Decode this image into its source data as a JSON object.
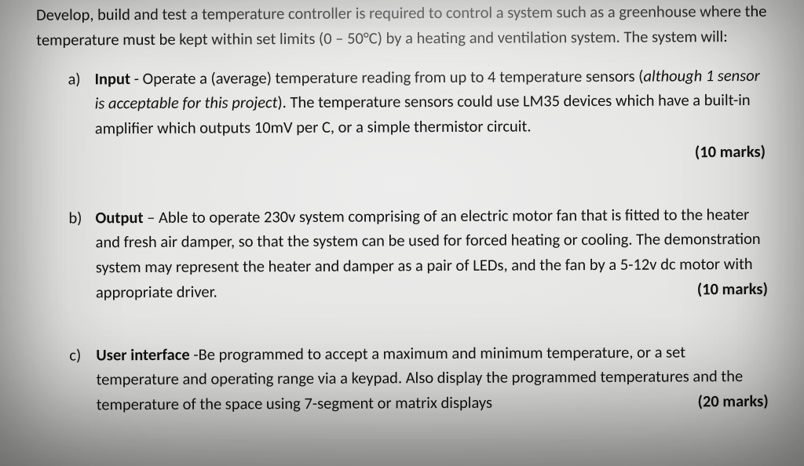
{
  "intro_html": "Develop, build and test a temperature controller is required to control a system such as a greenhouse where the temperature must be kept within set limits (0 – 50°C) by a heating and ventilation system. The system will:",
  "items": [
    {
      "marker": "a)",
      "body_html": "<b>Input</b> - Operate a (average) temperature reading from up to 4 temperature sensors (<em>although 1 sensor is acceptable for this project</em>). The temperature sensors could use LM35 devices which have a built-in amplifier which outputs 10mV per C, or a simple thermistor circuit.",
      "marks_text": "(10 marks)",
      "marks_newline": true
    },
    {
      "marker": "b)",
      "body_html": "<b>Output</b> – Able to operate 230v system comprising of an electric motor fan that is fitted to the heater and fresh air damper, so that the system can be used for forced heating or cooling. The demonstration system may represent the heater and damper as a pair of LEDs, and the fan by a 5-12v dc motor with appropriate driver.",
      "marks_text": "(10 marks)",
      "marks_newline": false
    },
    {
      "marker": "c)",
      "body_html": "<b>User interface</b> -Be programmed to accept a maximum and minimum temperature, or a set temperature and operating range via a keypad. Also display the programmed temperatures and the temperature of the space using 7-segment or matrix displays",
      "marks_text": "(20 marks)",
      "marks_newline": false
    }
  ]
}
